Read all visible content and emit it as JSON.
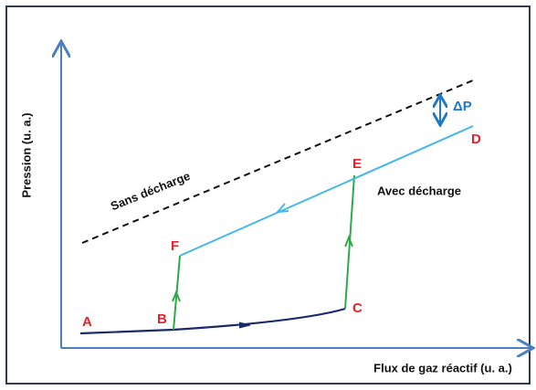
{
  "axes": {
    "y_label": "Pression (u. a.)",
    "x_label": "Flux de gaz réactif (u. a.)"
  },
  "curves": {
    "without_discharge": "Sans décharge",
    "with_discharge": "Avec décharge",
    "delta": "ΔP"
  },
  "points": {
    "A": "A",
    "B": "B",
    "C": "C",
    "D": "D",
    "E": "E",
    "F": "F"
  }
}
